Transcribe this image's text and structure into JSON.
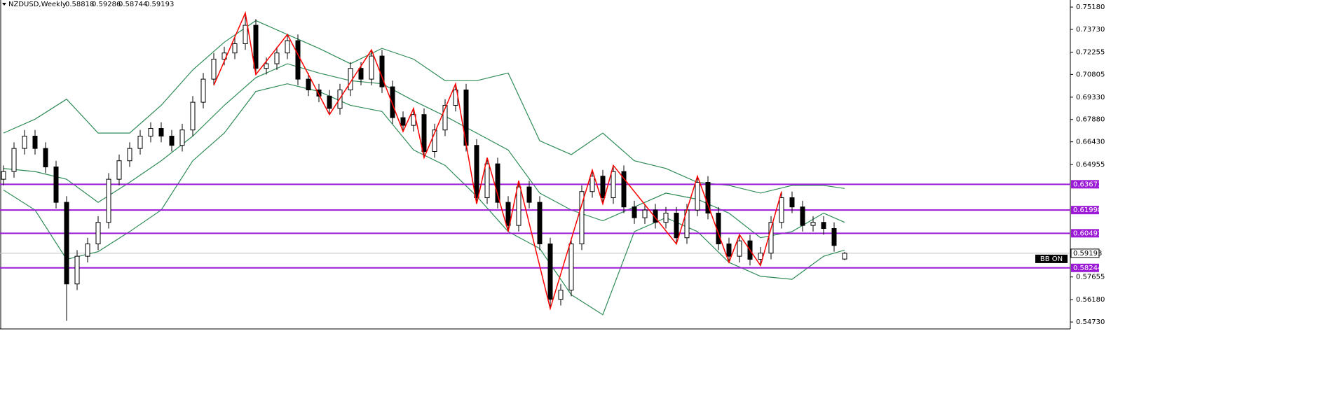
{
  "chart_data": {
    "type": "candlestick",
    "title": "NZDUSD,Weekly",
    "annotation": "BB ON",
    "ylim": [
      0.5428,
      0.7564
    ],
    "yticks": [
      {
        "value": 0.7518,
        "label": "0.75180"
      },
      {
        "value": 0.7373,
        "label": "0.73730"
      },
      0.72255,
      0.70805,
      {
        "value": 0.6933,
        "label": "0.69330"
      },
      {
        "value": 0.6788,
        "label": "0.67880"
      },
      {
        "value": 0.6643,
        "label": "0.66430"
      },
      0.64955,
      0.57655,
      {
        "value": 0.5618,
        "label": "0.56180"
      },
      {
        "value": 0.5473,
        "label": "0.54730"
      }
    ],
    "open": [
      0.64,
      0.645,
      0.66,
      0.668,
      0.66,
      0.648,
      0.625,
      0.572,
      0.59,
      0.598,
      0.612,
      0.64,
      0.652,
      0.66,
      0.668,
      0.673,
      0.668,
      0.662,
      0.672,
      0.69,
      0.705,
      0.718,
      0.722,
      0.728,
      0.74,
      0.712,
      0.715,
      0.722,
      0.73,
      0.705,
      0.698,
      0.694,
      0.686,
      0.698,
      0.712,
      0.705,
      0.72,
      0.7,
      0.68,
      0.675,
      0.682,
      0.658,
      0.672,
      0.688,
      0.698,
      0.662,
      0.628,
      0.65,
      0.625,
      0.61,
      0.635,
      0.625,
      0.598,
      0.562,
      0.568,
      0.598,
      0.632,
      0.642,
      0.628,
      0.645,
      0.622,
      0.615,
      0.62,
      0.612,
      0.618,
      0.602,
      0.62,
      0.638,
      0.618,
      0.598,
      0.59,
      0.6,
      0.588,
      0.592,
      0.612,
      0.628,
      0.622,
      0.61,
      0.612,
      0.608,
      0.58818
    ],
    "high": [
      0.649,
      0.664,
      0.672,
      0.672,
      0.664,
      0.652,
      0.629,
      0.594,
      0.602,
      0.616,
      0.644,
      0.656,
      0.664,
      0.672,
      0.677,
      0.677,
      0.672,
      0.676,
      0.694,
      0.709,
      0.722,
      0.726,
      0.732,
      0.748,
      0.744,
      0.719,
      0.726,
      0.734,
      0.734,
      0.709,
      0.702,
      0.698,
      0.702,
      0.716,
      0.716,
      0.724,
      0.724,
      0.704,
      0.684,
      0.686,
      0.686,
      0.676,
      0.692,
      0.702,
      0.702,
      0.666,
      0.654,
      0.654,
      0.629,
      0.639,
      0.639,
      0.629,
      0.602,
      0.572,
      0.602,
      0.636,
      0.646,
      0.646,
      0.649,
      0.649,
      0.626,
      0.624,
      0.624,
      0.622,
      0.622,
      0.624,
      0.642,
      0.642,
      0.622,
      0.602,
      0.604,
      0.604,
      0.596,
      0.616,
      0.632,
      0.632,
      0.626,
      0.616,
      0.616,
      0.612,
      0.59286
    ],
    "low": [
      0.636,
      0.641,
      0.656,
      0.656,
      0.644,
      0.621,
      0.548,
      0.568,
      0.586,
      0.594,
      0.608,
      0.636,
      0.648,
      0.656,
      0.664,
      0.664,
      0.658,
      0.658,
      0.668,
      0.686,
      0.701,
      0.714,
      0.718,
      0.724,
      0.708,
      0.708,
      0.711,
      0.718,
      0.701,
      0.694,
      0.69,
      0.682,
      0.682,
      0.694,
      0.701,
      0.701,
      0.696,
      0.676,
      0.671,
      0.671,
      0.654,
      0.654,
      0.668,
      0.684,
      0.658,
      0.624,
      0.624,
      0.621,
      0.606,
      0.606,
      0.621,
      0.594,
      0.556,
      0.558,
      0.564,
      0.594,
      0.628,
      0.624,
      0.624,
      0.618,
      0.611,
      0.611,
      0.608,
      0.608,
      0.598,
      0.598,
      0.616,
      0.614,
      0.594,
      0.586,
      0.586,
      0.584,
      0.584,
      0.588,
      0.608,
      0.618,
      0.606,
      0.606,
      0.604,
      0.593,
      0.58744
    ],
    "close": [
      0.645,
      0.66,
      0.668,
      0.66,
      0.648,
      0.625,
      0.572,
      0.59,
      0.598,
      0.612,
      0.64,
      0.652,
      0.66,
      0.668,
      0.673,
      0.668,
      0.662,
      0.672,
      0.69,
      0.705,
      0.718,
      0.722,
      0.728,
      0.74,
      0.712,
      0.715,
      0.722,
      0.73,
      0.705,
      0.698,
      0.694,
      0.686,
      0.698,
      0.712,
      0.705,
      0.72,
      0.7,
      0.68,
      0.675,
      0.682,
      0.658,
      0.672,
      0.688,
      0.698,
      0.662,
      0.628,
      0.65,
      0.625,
      0.61,
      0.635,
      0.625,
      0.598,
      0.562,
      0.568,
      0.598,
      0.632,
      0.642,
      0.628,
      0.645,
      0.622,
      0.615,
      0.62,
      0.612,
      0.618,
      0.602,
      0.62,
      0.638,
      0.618,
      0.598,
      0.59,
      0.6,
      0.588,
      0.592,
      0.612,
      0.628,
      0.622,
      0.61,
      0.612,
      0.608,
      0.597,
      0.59193
    ],
    "bands": {
      "color": "#2e8b57",
      "x": [
        0,
        3,
        6,
        9,
        12,
        15,
        18,
        21,
        24,
        27,
        30,
        33,
        36,
        39,
        42,
        45,
        48,
        51,
        54,
        57,
        60,
        63,
        66,
        69,
        72,
        75,
        78,
        80
      ],
      "upper": [
        0.67,
        0.679,
        0.692,
        0.67,
        0.67,
        0.688,
        0.711,
        0.729,
        0.743,
        0.734,
        0.725,
        0.715,
        0.725,
        0.718,
        0.704,
        0.704,
        0.709,
        0.665,
        0.656,
        0.67,
        0.652,
        0.647,
        0.638,
        0.636,
        0.631,
        0.636,
        0.636,
        0.634
      ],
      "middle": [
        0.647,
        0.645,
        0.64,
        0.625,
        0.638,
        0.652,
        0.668,
        0.688,
        0.706,
        0.715,
        0.709,
        0.704,
        0.702,
        0.691,
        0.681,
        0.67,
        0.659,
        0.631,
        0.62,
        0.613,
        0.622,
        0.631,
        0.627,
        0.618,
        0.602,
        0.606,
        0.618,
        0.612
      ],
      "lower": [
        0.633,
        0.62,
        0.588,
        0.593,
        0.606,
        0.62,
        0.652,
        0.67,
        0.697,
        0.702,
        0.697,
        0.688,
        0.684,
        0.659,
        0.649,
        0.629,
        0.606,
        0.595,
        0.565,
        0.552,
        0.606,
        0.615,
        0.606,
        0.586,
        0.577,
        0.575,
        0.59,
        0.594
      ]
    },
    "zigzag": {
      "color": "#ff0000",
      "x": [
        20,
        23,
        24,
        27,
        31,
        35,
        38,
        39,
        40,
        43,
        45,
        46,
        48,
        49,
        52,
        56,
        57,
        58,
        64,
        66,
        69,
        70,
        72,
        74
      ],
      "values": [
        0.701,
        0.748,
        0.708,
        0.734,
        0.682,
        0.724,
        0.671,
        0.686,
        0.654,
        0.702,
        0.624,
        0.654,
        0.606,
        0.639,
        0.556,
        0.646,
        0.624,
        0.649,
        0.598,
        0.642,
        0.586,
        0.604,
        0.584,
        0.632
      ]
    },
    "levels": {
      "color": "#9c1ad6",
      "values": [
        0.63673,
        0.61998,
        0.60491,
        0.58244
      ]
    }
  }
}
